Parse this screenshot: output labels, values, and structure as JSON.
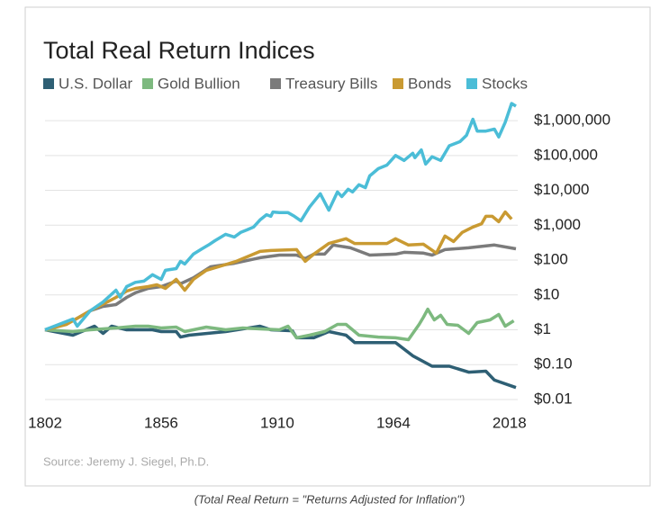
{
  "chart_data": {
    "type": "line",
    "title": "Total Real Return Indices",
    "log_scale": true,
    "grid": true,
    "xlim": [
      1802,
      2021
    ],
    "xticks": [
      1802,
      1856,
      1910,
      1964,
      2018
    ],
    "ylim": [
      0.01,
      5000000
    ],
    "yticks": [
      {
        "value": 0.01,
        "label": "$0.01"
      },
      {
        "value": 0.1,
        "label": "$0.10"
      },
      {
        "value": 1,
        "label": "$1"
      },
      {
        "value": 10,
        "label": "$10"
      },
      {
        "value": 100,
        "label": "$100"
      },
      {
        "value": 1000,
        "label": "$1,000"
      },
      {
        "value": 10000,
        "label": "$10,000"
      },
      {
        "value": 100000,
        "label": "$100,000"
      },
      {
        "value": 1000000,
        "label": "$1,000,000"
      }
    ],
    "series": [
      {
        "name": "U.S. Dollar",
        "color": "#2e5f74",
        "x": [
          1802,
          1815,
          1821,
          1825,
          1829,
          1833,
          1840,
          1852,
          1856,
          1863,
          1865,
          1869,
          1886,
          1902,
          1907,
          1917,
          1919,
          1927,
          1934,
          1942,
          1946,
          1957,
          1965,
          1973,
          1982,
          1990,
          1999,
          2007,
          2011,
          2021
        ],
        "values": [
          1,
          0.7,
          1,
          1.27,
          0.79,
          1.27,
          1,
          1,
          0.89,
          0.89,
          0.62,
          0.7,
          0.89,
          1.27,
          1,
          0.94,
          0.59,
          0.59,
          0.89,
          0.7,
          0.43,
          0.43,
          0.43,
          0.18,
          0.09,
          0.09,
          0.061,
          0.065,
          0.036,
          0.022
        ]
      },
      {
        "name": "Gold Bullion",
        "color": "#7db97f",
        "x": [
          1802,
          1815,
          1823,
          1829,
          1835,
          1844,
          1850,
          1856,
          1863,
          1867,
          1871,
          1877,
          1886,
          1894,
          1902,
          1911,
          1915,
          1919,
          1925,
          1932,
          1938,
          1942,
          1948,
          1957,
          1965,
          1971,
          1976,
          1978,
          1980,
          1983,
          1986,
          1989,
          1994,
          1999,
          2003,
          2009,
          2013,
          2016,
          2020
        ],
        "values": [
          1,
          0.89,
          1,
          1.06,
          1.13,
          1.27,
          1.27,
          1.13,
          1.2,
          0.89,
          1,
          1.2,
          1,
          1.13,
          1.06,
          1,
          1.27,
          0.59,
          0.7,
          0.89,
          1.43,
          1.43,
          0.7,
          0.62,
          0.59,
          0.52,
          1.43,
          2.3,
          3.9,
          1.92,
          2.6,
          1.43,
          1.35,
          0.79,
          1.61,
          1.92,
          2.75,
          1.27,
          1.81
        ]
      },
      {
        "name": "Treasury Bills",
        "color": "#7b7b7b",
        "x": [
          1802,
          1815,
          1823,
          1829,
          1835,
          1840,
          1844,
          1850,
          1856,
          1863,
          1865,
          1871,
          1879,
          1890,
          1902,
          1911,
          1919,
          1923,
          1927,
          1932,
          1936,
          1944,
          1953,
          1965,
          1969,
          1978,
          1982,
          1988,
          1999,
          2011,
          2021
        ],
        "values": [
          1,
          1.81,
          3.5,
          4.7,
          5.3,
          8.5,
          11.5,
          15.4,
          17.4,
          25,
          21,
          31,
          64,
          81,
          117,
          139,
          139,
          110,
          148,
          148,
          270,
          225,
          139,
          148,
          167,
          158,
          139,
          200,
          225,
          270,
          211
        ]
      },
      {
        "name": "Bonds",
        "color": "#c99a32",
        "x": [
          1802,
          1812,
          1823,
          1827,
          1831,
          1835,
          1840,
          1844,
          1850,
          1854,
          1858,
          1863,
          1867,
          1871,
          1877,
          1884,
          1891,
          1896,
          1902,
          1907,
          1919,
          1923,
          1927,
          1934,
          1942,
          1946,
          1953,
          1961,
          1965,
          1971,
          1978,
          1984,
          1988,
          1992,
          1996,
          2001,
          2005,
          2007,
          2010,
          2013,
          2016,
          2019
        ],
        "values": [
          1,
          1.43,
          3.5,
          4.7,
          6.3,
          8.5,
          12.9,
          15.4,
          17.4,
          19.6,
          15.4,
          28,
          13.7,
          28,
          51,
          68,
          92,
          124,
          177,
          188,
          200,
          92,
          148,
          300,
          410,
          300,
          300,
          300,
          410,
          270,
          285,
          158,
          490,
          340,
          620,
          890,
          1100,
          1800,
          1800,
          1260,
          2400,
          1500
        ]
      },
      {
        "name": "Stocks",
        "color": "#4bbdd7",
        "x": [
          1802,
          1815,
          1817,
          1823,
          1829,
          1835,
          1837,
          1840,
          1844,
          1848,
          1852,
          1856,
          1858,
          1863,
          1865,
          1867,
          1871,
          1875,
          1878,
          1881,
          1886,
          1890,
          1893,
          1896,
          1899,
          1902,
          1905,
          1907,
          1908,
          1911,
          1915,
          1918,
          1921,
          1925,
          1930,
          1934,
          1938,
          1940,
          1943,
          1945,
          1948,
          1951,
          1953,
          1957,
          1961,
          1965,
          1969,
          1973,
          1974,
          1977,
          1979,
          1982,
          1986,
          1990,
          1995,
          1998,
          2001,
          2003,
          2007,
          2011,
          2013,
          2016,
          2019,
          2021
        ],
        "values": [
          1,
          2.04,
          1.27,
          3.5,
          6.3,
          13.7,
          8.5,
          17.4,
          23,
          25,
          38,
          28,
          51,
          57,
          92,
          77,
          148,
          211,
          270,
          360,
          550,
          460,
          620,
          740,
          890,
          1420,
          2000,
          1800,
          2400,
          2300,
          2300,
          1800,
          1340,
          3300,
          8000,
          2700,
          9000,
          6600,
          10800,
          9000,
          14500,
          12000,
          26000,
          42000,
          53000,
          100000,
          72000,
          116000,
          87000,
          145000,
          57000,
          92000,
          72000,
          190000,
          250000,
          380000,
          1100000,
          500000,
          500000,
          570000,
          340000,
          900000,
          3100000,
          2600000
        ]
      }
    ],
    "source": "Source: Jeremy J. Siegel, Ph.D.",
    "caption": "(Total Real Return = \"Returns Adjusted for Inflation\")"
  }
}
